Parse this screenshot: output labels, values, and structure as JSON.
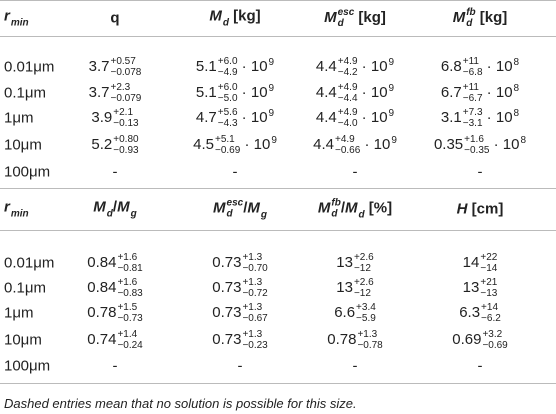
{
  "tables": [
    {
      "header": [
        [
          {
            "t": "r",
            "f": "i"
          },
          {
            "sub": "min"
          }
        ],
        [
          {
            "t": "q"
          }
        ],
        [
          {
            "t": "M",
            "f": "i"
          },
          {
            "sub": "d"
          },
          {
            "t": " [kg]"
          }
        ],
        [
          {
            "t": "M",
            "f": "i"
          },
          {
            "sup": "esc",
            "sub": "d"
          },
          {
            "t": " [kg]"
          }
        ],
        [
          {
            "t": "M",
            "f": "i"
          },
          {
            "sup": "fb",
            "sub": "d"
          },
          {
            "t": " [kg]"
          }
        ]
      ],
      "rows": [
        [
          [
            {
              "t": "0.01μm"
            }
          ],
          [
            {
              "t": "3.7"
            },
            {
              "sup": "+0.57",
              "sub": "−0.078"
            }
          ],
          [
            {
              "t": "5.1"
            },
            {
              "sup": "+6.0",
              "sub": "−4.9"
            },
            {
              "t": " · 10"
            },
            {
              "sup": "9"
            }
          ],
          [
            {
              "t": "4.4"
            },
            {
              "sup": "+4.9",
              "sub": "−4.2"
            },
            {
              "t": " · 10"
            },
            {
              "sup": "9"
            }
          ],
          [
            {
              "t": "6.8"
            },
            {
              "sup": "+11",
              "sub": "−6.8"
            },
            {
              "t": " · 10"
            },
            {
              "sup": "8"
            }
          ]
        ],
        [
          [
            {
              "t": "0.1μm"
            }
          ],
          [
            {
              "t": "3.7"
            },
            {
              "sup": "+2.3",
              "sub": "−0.079"
            }
          ],
          [
            {
              "t": "5.1"
            },
            {
              "sup": "+6.0",
              "sub": "−5.0"
            },
            {
              "t": " · 10"
            },
            {
              "sup": "9"
            }
          ],
          [
            {
              "t": "4.4"
            },
            {
              "sup": "+4.9",
              "sub": "−4.4"
            },
            {
              "t": " · 10"
            },
            {
              "sup": "9"
            }
          ],
          [
            {
              "t": "6.7"
            },
            {
              "sup": "+11",
              "sub": "−6.7"
            },
            {
              "t": " · 10"
            },
            {
              "sup": "8"
            }
          ]
        ],
        [
          [
            {
              "t": "1μm"
            }
          ],
          [
            {
              "t": "3.9"
            },
            {
              "sup": "+2.1",
              "sub": "−0.13"
            }
          ],
          [
            {
              "t": "4.7"
            },
            {
              "sup": "+5.6",
              "sub": "−4.3"
            },
            {
              "t": " · 10"
            },
            {
              "sup": "9"
            }
          ],
          [
            {
              "t": "4.4"
            },
            {
              "sup": "+4.9",
              "sub": "−4.0"
            },
            {
              "t": " · 10"
            },
            {
              "sup": "9"
            }
          ],
          [
            {
              "t": "3.1"
            },
            {
              "sup": "+7.3",
              "sub": "−3.1"
            },
            {
              "t": " · 10"
            },
            {
              "sup": "8"
            }
          ]
        ],
        [
          [
            {
              "t": "10μm"
            }
          ],
          [
            {
              "t": "5.2"
            },
            {
              "sup": "+0.80",
              "sub": "−0.93"
            }
          ],
          [
            {
              "t": "4.5"
            },
            {
              "sup": "+5.1",
              "sub": "−0.69"
            },
            {
              "t": " · 10"
            },
            {
              "sup": "9"
            }
          ],
          [
            {
              "t": "4.4"
            },
            {
              "sup": "+4.9",
              "sub": "−0.66"
            },
            {
              "t": " · 10"
            },
            {
              "sup": "9"
            }
          ],
          [
            {
              "t": "0.35"
            },
            {
              "sup": "+1.6",
              "sub": "−0.35"
            },
            {
              "t": " · 10"
            },
            {
              "sup": "8"
            }
          ]
        ],
        [
          [
            {
              "t": "100μm"
            }
          ],
          [
            {
              "t": "-"
            }
          ],
          [
            {
              "t": "-"
            }
          ],
          [
            {
              "t": "-"
            }
          ],
          [
            {
              "t": "-"
            }
          ]
        ]
      ]
    },
    {
      "header": [
        [
          {
            "t": "r",
            "f": "i"
          },
          {
            "sub": "min"
          }
        ],
        [
          {
            "t": "M",
            "f": "i"
          },
          {
            "sub": "d"
          },
          {
            "t": "/"
          },
          {
            "t": "M",
            "f": "i"
          },
          {
            "sub": "g"
          }
        ],
        [
          {
            "t": "M",
            "f": "i"
          },
          {
            "sup": "esc",
            "sub": "d"
          },
          {
            "t": "/"
          },
          {
            "t": "M",
            "f": "i"
          },
          {
            "sub": "g"
          }
        ],
        [
          {
            "t": "M",
            "f": "i"
          },
          {
            "sup": "fb",
            "sub": "d"
          },
          {
            "t": "/"
          },
          {
            "t": "M",
            "f": "i"
          },
          {
            "sub": "d"
          },
          {
            "t": " [%]"
          }
        ],
        [
          {
            "t": "H",
            "f": "i"
          },
          {
            "t": " [cm]"
          }
        ]
      ],
      "rows": [
        [
          [
            {
              "t": "0.01μm"
            }
          ],
          [
            {
              "t": "0.84"
            },
            {
              "sup": "+1.6",
              "sub": "−0.81"
            }
          ],
          [
            {
              "t": "0.73"
            },
            {
              "sup": "+1.3",
              "sub": "−0.70"
            }
          ],
          [
            {
              "t": "13"
            },
            {
              "sup": "+2.6",
              "sub": "−12"
            }
          ],
          [
            {
              "t": "14"
            },
            {
              "sup": "+22",
              "sub": "−14"
            }
          ]
        ],
        [
          [
            {
              "t": "0.1μm"
            }
          ],
          [
            {
              "t": "0.84"
            },
            {
              "sup": "+1.6",
              "sub": "−0.83"
            }
          ],
          [
            {
              "t": "0.73"
            },
            {
              "sup": "+1.3",
              "sub": "−0.72"
            }
          ],
          [
            {
              "t": "13"
            },
            {
              "sup": "+2.6",
              "sub": "−12"
            }
          ],
          [
            {
              "t": "13"
            },
            {
              "sup": "+21",
              "sub": "−13"
            }
          ]
        ],
        [
          [
            {
              "t": "1μm"
            }
          ],
          [
            {
              "t": "0.78"
            },
            {
              "sup": "+1.5",
              "sub": "−0.73"
            }
          ],
          [
            {
              "t": "0.73"
            },
            {
              "sup": "+1.3",
              "sub": "−0.67"
            }
          ],
          [
            {
              "t": "6.6"
            },
            {
              "sup": "+3.4",
              "sub": "−5.9"
            }
          ],
          [
            {
              "t": "6.3"
            },
            {
              "sup": "+14",
              "sub": "−6.2"
            }
          ]
        ],
        [
          [
            {
              "t": "10μm"
            }
          ],
          [
            {
              "t": "0.74"
            },
            {
              "sup": "+1.4",
              "sub": "−0.24"
            }
          ],
          [
            {
              "t": "0.73"
            },
            {
              "sup": "+1.3",
              "sub": "−0.23"
            }
          ],
          [
            {
              "t": "0.78"
            },
            {
              "sup": "+1.3",
              "sub": "−0.78"
            }
          ],
          [
            {
              "t": "0.69"
            },
            {
              "sup": "+3.2",
              "sub": "−0.69"
            }
          ]
        ],
        [
          [
            {
              "t": "100μm"
            }
          ],
          [
            {
              "t": "-"
            }
          ],
          [
            {
              "t": "-"
            }
          ],
          [
            {
              "t": "-"
            }
          ],
          [
            {
              "t": "-"
            }
          ]
        ]
      ]
    }
  ],
  "note": "Dashed entries mean that no solution is possible for this size."
}
